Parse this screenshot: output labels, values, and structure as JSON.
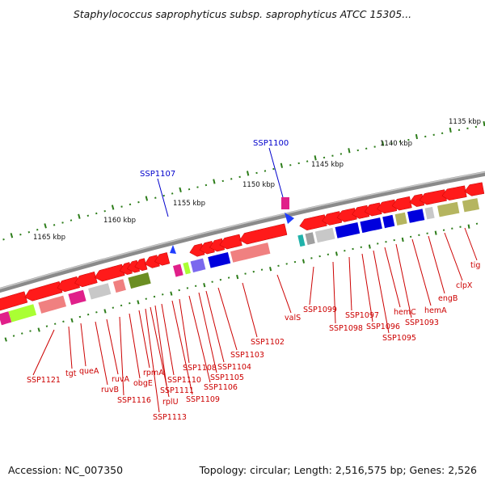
{
  "title": "Staphylococcus saprophyticus subsp. saprophyticus ATCC 15305...",
  "footer": {
    "accession": "Accession: NC_007350",
    "summary": "Topology: circular; Length: 2,516,575 bp; Genes: 2,526"
  },
  "colors": {
    "backbone": "#808080",
    "tick": "#2d7d1a",
    "gene_label": "#cc0000",
    "highlight_label": "#0000cc",
    "forward_gene": "#ff1a1a",
    "reverse_gene": "#ff1a1a"
  },
  "scale_labels": [
    {
      "text": "1135 kbp"
    },
    {
      "text": "1140 kbp"
    },
    {
      "text": "1145 kbp"
    },
    {
      "text": "1150 kbp"
    },
    {
      "text": "1155 kbp"
    },
    {
      "text": "1160 kbp"
    },
    {
      "text": "1165 kbp"
    }
  ],
  "highlighted_genes": [
    "SSP1100",
    "SSP1107"
  ],
  "gene_labels": [
    "SSP1121",
    "tgt",
    "queA",
    "ruvB",
    "ruvA",
    "SSP1116",
    "obgE",
    "rpmA",
    "SSP1113",
    "rplU",
    "SSP1111",
    "SSP1110",
    "SSP1109",
    "SSP1108",
    "SSP1106",
    "SSP1105",
    "SSP1104",
    "SSP1103",
    "SSP1102",
    "valS",
    "SSP1099",
    "SSP1098",
    "SSP1097",
    "SSP1096",
    "SSP1095",
    "hemC",
    "SSP1093",
    "hemA",
    "engB",
    "clpX",
    "tig"
  ]
}
